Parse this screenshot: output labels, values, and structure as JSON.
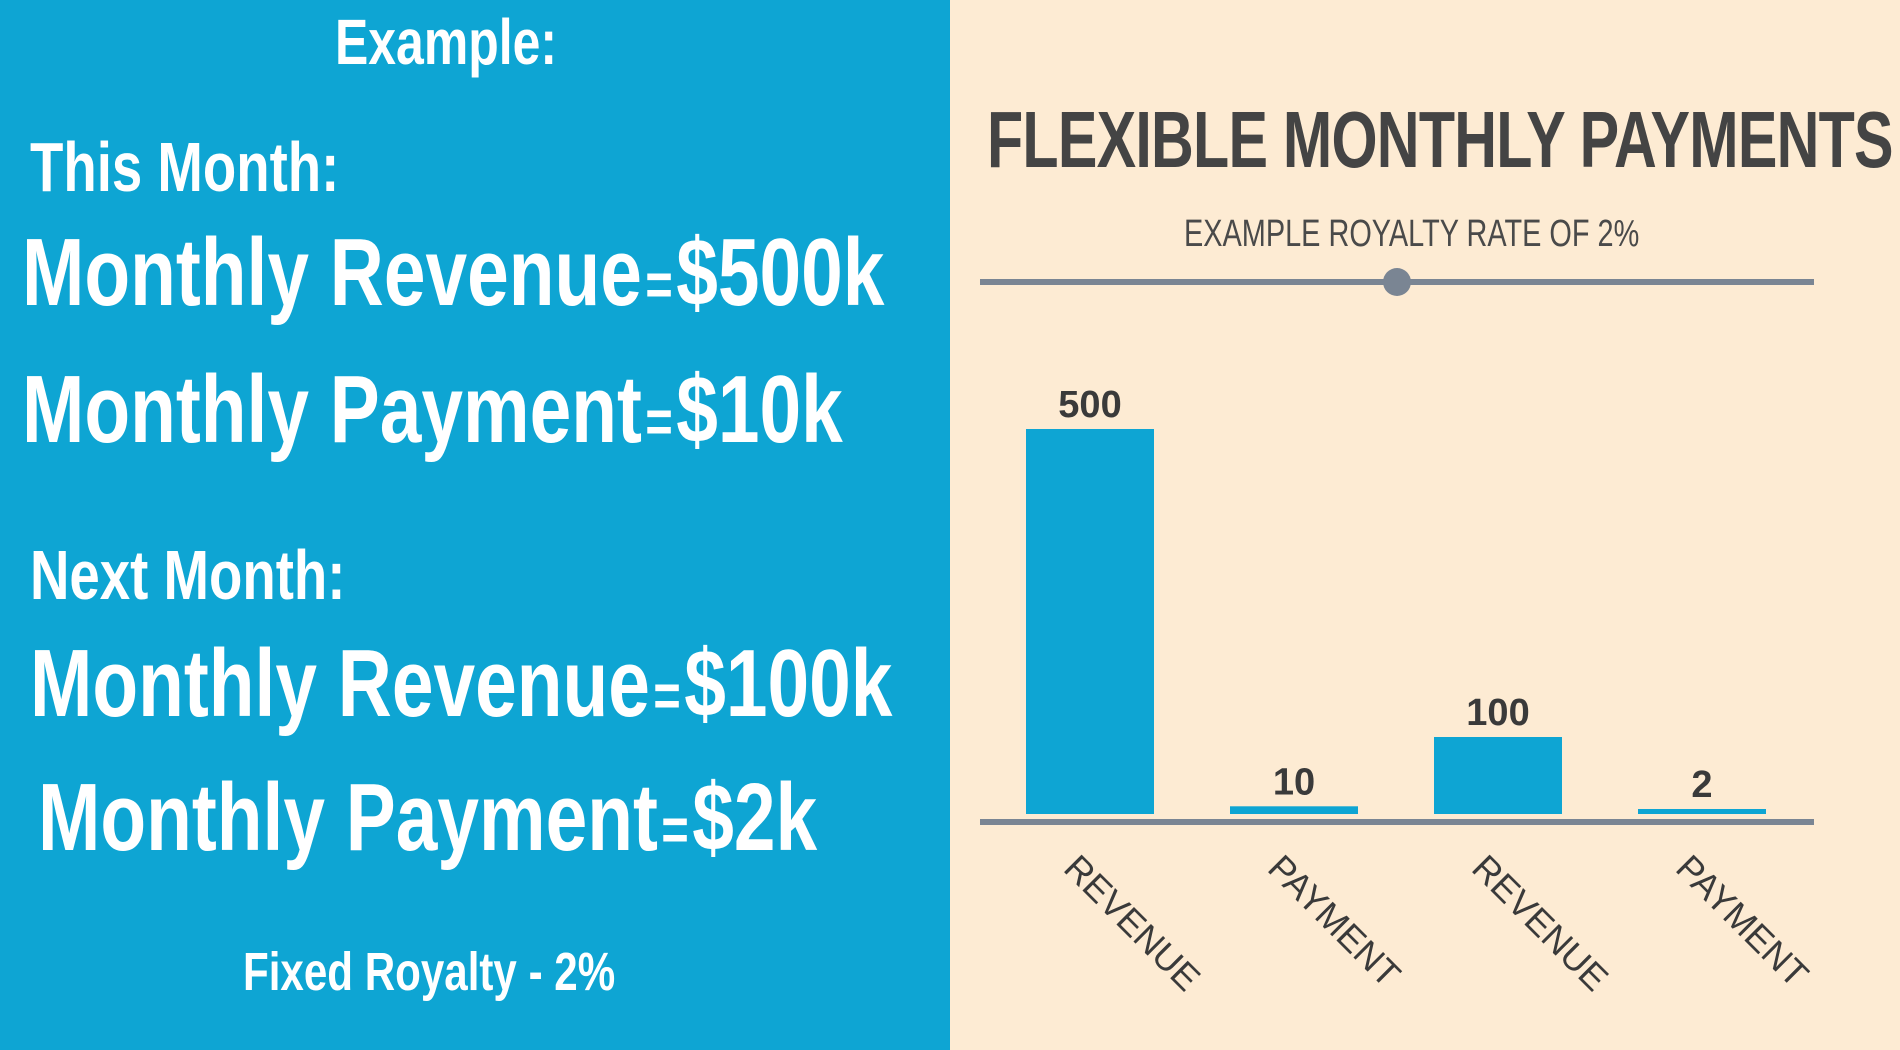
{
  "left": {
    "heading": "Example:",
    "this_month": {
      "label": "This Month:",
      "revenue_label": "Monthly Revenue",
      "revenue_value": "$500k",
      "payment_label": "Monthly Payment",
      "payment_value": "$10k"
    },
    "next_month": {
      "label": "Next Month:",
      "revenue_label": "Monthly Revenue",
      "revenue_value": "$100k",
      "payment_label": "Monthly Payment",
      "payment_value": "$2k"
    },
    "equals": "=",
    "footnote": "Fixed Royalty - 2%"
  },
  "colors": {
    "blue": "#0ea5d3",
    "cream": "#fdebd3",
    "slider": "#7a8593",
    "text_dark": "#444444"
  },
  "chart_data": {
    "type": "bar",
    "title": "FLEXIBLE MONTHLY PAYMENTS",
    "subtitle": "EXAMPLE ROYALTY RATE  OF 2%",
    "categories": [
      "REVENUE",
      "PAYMENT",
      "REVENUE",
      "PAYMENT"
    ],
    "values": [
      500,
      10,
      100,
      2
    ],
    "value_labels": [
      "500",
      "10",
      "100",
      "2"
    ],
    "ylim": [
      0,
      500
    ],
    "grid": false,
    "legend": "none",
    "slider_value": 0.5
  }
}
